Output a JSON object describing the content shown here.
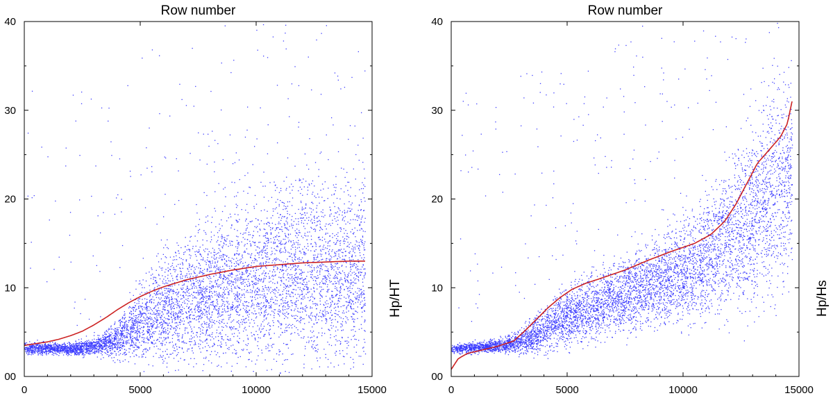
{
  "chart_data": [
    {
      "type": "scatter",
      "title": "Row number",
      "ylabel": "Hp/HT",
      "xlabel": "",
      "xlim": [
        0,
        15000
      ],
      "ylim": [
        0,
        40
      ],
      "xticks": [
        "0",
        "5000",
        "10000",
        "15000"
      ],
      "yticks": [
        "00",
        "10",
        "20",
        "30",
        "40"
      ],
      "grid": false,
      "point_color": "#3b3bff",
      "trend_color": "#cc2222",
      "series": [
        {
          "kind": "trend",
          "x": [
            0,
            500,
            1000,
            1500,
            2000,
            2500,
            3000,
            3500,
            4000,
            4500,
            5000,
            5500,
            6000,
            7000,
            8000,
            9000,
            10000,
            11000,
            12000,
            13000,
            14000,
            14700
          ],
          "y": [
            3.5,
            3.7,
            3.9,
            4.2,
            4.6,
            5.1,
            5.8,
            6.6,
            7.5,
            8.3,
            9.0,
            9.6,
            10.1,
            10.9,
            11.5,
            12.0,
            12.4,
            12.6,
            12.8,
            12.9,
            13.0,
            13.0
          ]
        }
      ],
      "cloud": {
        "x": [
          0,
          500,
          1000,
          1500,
          2000,
          2500,
          3000,
          3500,
          4000,
          4500,
          5000,
          6000,
          7000,
          8000,
          9000,
          10000,
          11000,
          12000,
          13000,
          14000,
          14700
        ],
        "center": [
          3.2,
          3.2,
          3.2,
          3.2,
          3.1,
          3.2,
          3.5,
          3.8,
          4.3,
          5.2,
          6.2,
          7.5,
          8.5,
          9.5,
          10.2,
          10.8,
          11.2,
          11.5,
          11.8,
          12.0,
          12.2
        ],
        "spread": [
          0.6,
          0.6,
          0.6,
          0.6,
          0.7,
          0.8,
          1.0,
          1.2,
          2.0,
          3.0,
          4.0,
          5.5,
          6.5,
          7.5,
          8.0,
          8.5,
          8.8,
          9.0,
          9.2,
          9.3,
          9.3
        ],
        "points": 6500
      }
    },
    {
      "type": "scatter",
      "title": "Row number",
      "ylabel": "Hp/Hs",
      "xlabel": "",
      "xlim": [
        0,
        15000
      ],
      "ylim": [
        0,
        40
      ],
      "xticks": [
        "0",
        "5000",
        "10000",
        "15000"
      ],
      "yticks": [
        "00",
        "10",
        "20",
        "30",
        "40"
      ],
      "grid": false,
      "point_color": "#3b3bff",
      "trend_color": "#cc2222",
      "series": [
        {
          "kind": "trend",
          "x": [
            0,
            300,
            700,
            1200,
            2000,
            2700,
            3200,
            3700,
            4200,
            4700,
            5200,
            5800,
            6500,
            7500,
            8500,
            9500,
            10500,
            11200,
            11800,
            12300,
            12800,
            13200,
            13700,
            14200,
            14500,
            14700
          ],
          "y": [
            0.8,
            2.0,
            2.6,
            2.9,
            3.4,
            4.0,
            5.2,
            6.5,
            7.8,
            8.9,
            9.8,
            10.5,
            11.1,
            12.0,
            13.1,
            14.1,
            15.0,
            16.0,
            17.5,
            19.5,
            22.0,
            24.0,
            25.5,
            27.0,
            28.5,
            31.0
          ]
        }
      ],
      "cloud": {
        "x": [
          0,
          500,
          1000,
          1500,
          2000,
          2500,
          3000,
          3500,
          4000,
          4500,
          5000,
          6000,
          7000,
          8000,
          9000,
          10000,
          11000,
          12000,
          13000,
          14000,
          14700
        ],
        "center": [
          3.1,
          3.2,
          3.3,
          3.4,
          3.5,
          3.7,
          4.0,
          4.5,
          5.2,
          6.0,
          6.8,
          7.8,
          8.7,
          9.7,
          10.8,
          12.0,
          13.5,
          15.5,
          18.0,
          21.0,
          23.0
        ],
        "spread": [
          0.5,
          0.5,
          0.6,
          0.6,
          0.7,
          0.9,
          1.3,
          1.8,
          2.3,
          2.8,
          3.0,
          3.3,
          3.6,
          4.0,
          4.5,
          5.2,
          6.0,
          7.5,
          9.0,
          10.0,
          10.0
        ],
        "points": 6500
      }
    }
  ]
}
